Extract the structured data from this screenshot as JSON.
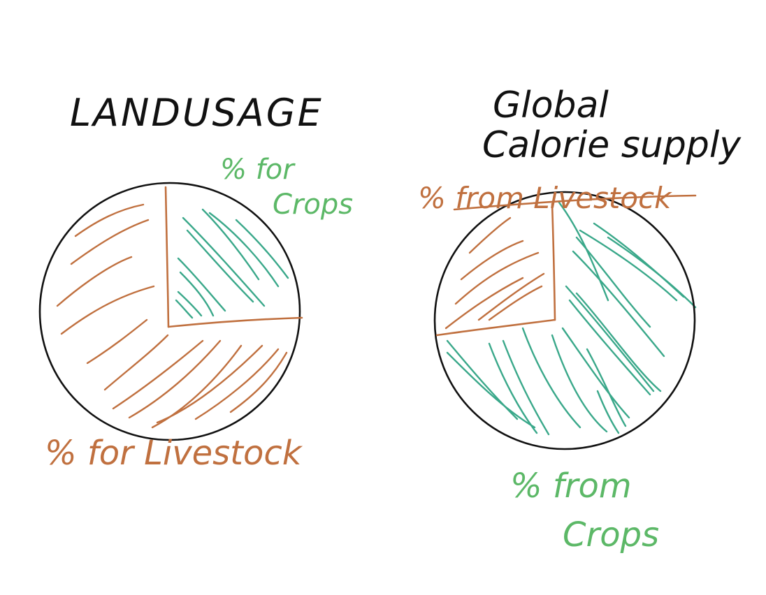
{
  "colors": {
    "background": "#ffffff",
    "ink": "#111111",
    "livestock": "#c0703f",
    "crops": "#3aa88a",
    "crops_label": "#5cb867"
  },
  "chart_data": [
    {
      "type": "pie",
      "title": "LANDUSAGE",
      "slices": [
        {
          "label": "% for Crops",
          "value": 25,
          "color_key": "crops"
        },
        {
          "label": "% for Livestock",
          "value": 75,
          "color_key": "livestock"
        }
      ]
    },
    {
      "type": "pie",
      "title": "Global Calorie supply",
      "slices": [
        {
          "label": "% from Livestock",
          "value": 25,
          "color_key": "livestock"
        },
        {
          "label": "% from Crops",
          "value": 75,
          "color_key": "crops"
        }
      ]
    }
  ]
}
